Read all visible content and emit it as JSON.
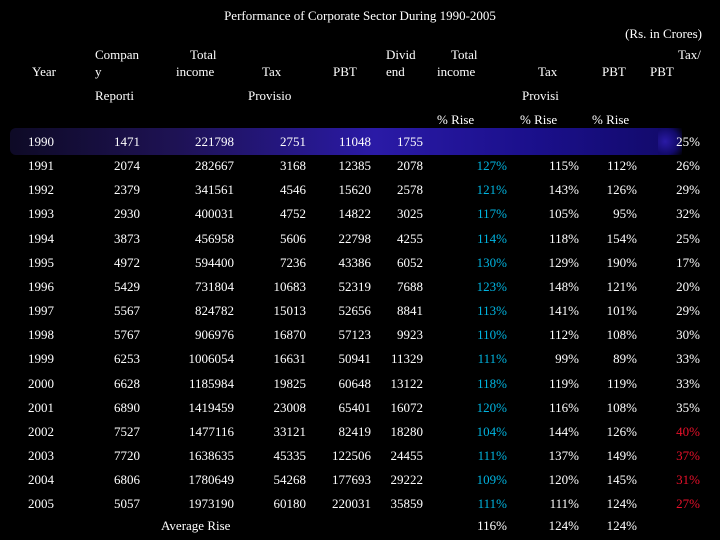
{
  "title": "Performance of Corporate Sector During 1990-2005",
  "units": "(Rs. in Crores)",
  "headers": {
    "year": "Year",
    "companies_1": "Compan",
    "companies_2": "y",
    "reporting": "Reporti",
    "total_income_1": "Total",
    "total_income_2": "income",
    "tax": "Tax",
    "provision": "Provisio",
    "pbt": "PBT",
    "dividend_1": "Divid",
    "dividend_2": "end",
    "rise_total_income_1": "Total",
    "rise_total_income_2": "income",
    "rise_tax": "Tax",
    "rise_provision": "Provisi",
    "rise_pbt": "PBT",
    "tax_pbt_1": "Tax/",
    "tax_pbt_2": "PBT",
    "pct_rise_1": "% Rise",
    "pct_rise_2": "% Rise",
    "pct_rise_3": "% Rise"
  },
  "rows": [
    {
      "year": "1990",
      "companies": "1471",
      "income": "221798",
      "tax": "2751",
      "pbt": "11048",
      "dividend": "1755",
      "income_rise": "",
      "tax_rise": "",
      "pbt_rise": "",
      "tax_pbt": "25%"
    },
    {
      "year": "1991",
      "companies": "2074",
      "income": "282667",
      "tax": "3168",
      "pbt": "12385",
      "dividend": "2078",
      "income_rise": "127%",
      "tax_rise": "115%",
      "pbt_rise": "112%",
      "tax_pbt": "26%"
    },
    {
      "year": "1992",
      "companies": "2379",
      "income": "341561",
      "tax": "4546",
      "pbt": "15620",
      "dividend": "2578",
      "income_rise": "121%",
      "tax_rise": "143%",
      "pbt_rise": "126%",
      "tax_pbt": "29%"
    },
    {
      "year": "1993",
      "companies": "2930",
      "income": "400031",
      "tax": "4752",
      "pbt": "14822",
      "dividend": "3025",
      "income_rise": "117%",
      "tax_rise": "105%",
      "pbt_rise": "95%",
      "tax_pbt": "32%"
    },
    {
      "year": "1994",
      "companies": "3873",
      "income": "456958",
      "tax": "5606",
      "pbt": "22798",
      "dividend": "4255",
      "income_rise": "114%",
      "tax_rise": "118%",
      "pbt_rise": "154%",
      "tax_pbt": "25%"
    },
    {
      "year": "1995",
      "companies": "4972",
      "income": "594400",
      "tax": "7236",
      "pbt": "43386",
      "dividend": "6052",
      "income_rise": "130%",
      "tax_rise": "129%",
      "pbt_rise": "190%",
      "tax_pbt": "17%"
    },
    {
      "year": "1996",
      "companies": "5429",
      "income": "731804",
      "tax": "10683",
      "pbt": "52319",
      "dividend": "7688",
      "income_rise": "123%",
      "tax_rise": "148%",
      "pbt_rise": "121%",
      "tax_pbt": "20%"
    },
    {
      "year": "1997",
      "companies": "5567",
      "income": "824782",
      "tax": "15013",
      "pbt": "52656",
      "dividend": "8841",
      "income_rise": "113%",
      "tax_rise": "141%",
      "pbt_rise": "101%",
      "tax_pbt": "29%"
    },
    {
      "year": "1998",
      "companies": "5767",
      "income": "906976",
      "tax": "16870",
      "pbt": "57123",
      "dividend": "9923",
      "income_rise": "110%",
      "tax_rise": "112%",
      "pbt_rise": "108%",
      "tax_pbt": "30%"
    },
    {
      "year": "1999",
      "companies": "6253",
      "income": "1006054",
      "tax": "16631",
      "pbt": "50941",
      "dividend": "11329",
      "income_rise": "111%",
      "tax_rise": "99%",
      "pbt_rise": "89%",
      "tax_pbt": "33%"
    },
    {
      "year": "2000",
      "companies": "6628",
      "income": "1185984",
      "tax": "19825",
      "pbt": "60648",
      "dividend": "13122",
      "income_rise": "118%",
      "tax_rise": "119%",
      "pbt_rise": "119%",
      "tax_pbt": "33%"
    },
    {
      "year": "2001",
      "companies": "6890",
      "income": "1419459",
      "tax": "23008",
      "pbt": "65401",
      "dividend": "16072",
      "income_rise": "120%",
      "tax_rise": "116%",
      "pbt_rise": "108%",
      "tax_pbt": "35%"
    },
    {
      "year": "2002",
      "companies": "7527",
      "income": "1477116",
      "tax": "33121",
      "pbt": "82419",
      "dividend": "18280",
      "income_rise": "104%",
      "tax_rise": "144%",
      "pbt_rise": "126%",
      "tax_pbt": "40%"
    },
    {
      "year": "2003",
      "companies": "7720",
      "income": "1638635",
      "tax": "45335",
      "pbt": "122506",
      "dividend": "24455",
      "income_rise": "111%",
      "tax_rise": "137%",
      "pbt_rise": "149%",
      "tax_pbt": "37%"
    },
    {
      "year": "2004",
      "companies": "6806",
      "income": "1780649",
      "tax": "54268",
      "pbt": "177693",
      "dividend": "29222",
      "income_rise": "109%",
      "tax_rise": "120%",
      "pbt_rise": "145%",
      "tax_pbt": "31%"
    },
    {
      "year": "2005",
      "companies": "5057",
      "income": "1973190",
      "tax": "60180",
      "pbt": "220031",
      "dividend": "35859",
      "income_rise": "111%",
      "tax_rise": "111%",
      "pbt_rise": "124%",
      "tax_pbt": "27%"
    }
  ],
  "average": {
    "label": "Average Rise",
    "income_rise": "116%",
    "tax_rise": "124%",
    "pbt_rise": "124%"
  },
  "colors": {
    "background": "#000000",
    "text": "#ffffff",
    "income_rise_text": "#00b4e0",
    "high_tax_pbt_text": "#e8102a",
    "highlight_band": "#2a1aa6"
  },
  "highlighted_row": "1990",
  "red_tax_pbt_years": [
    "2002",
    "2003",
    "2004",
    "2005"
  ]
}
